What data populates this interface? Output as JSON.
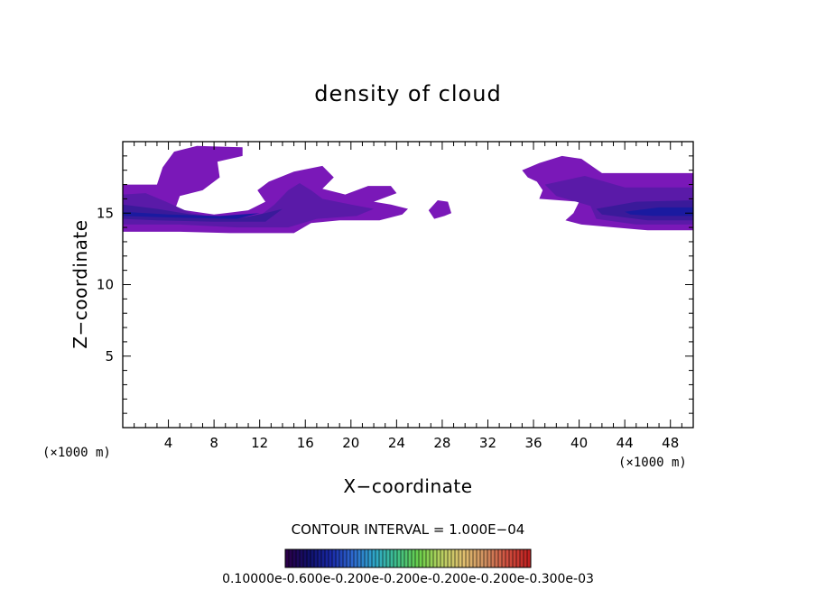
{
  "chart_data": {
    "type": "heatmap",
    "title": "density of cloud",
    "xlabel": "X−coordinate",
    "ylabel": "Z−coordinate",
    "x_unit": "(×1000 m)",
    "y_unit": "(×1000 m)",
    "xlim": [
      0,
      50
    ],
    "ylim": [
      0,
      20
    ],
    "x_ticks": [
      4,
      8,
      12,
      16,
      20,
      24,
      28,
      32,
      36,
      40,
      44,
      48
    ],
    "x_tick_labels": [
      "4",
      "8",
      "12",
      "16",
      "20",
      "24",
      "28",
      "32",
      "36",
      "40",
      "44",
      "48"
    ],
    "y_ticks": [
      5,
      10,
      15
    ],
    "y_tick_labels": [
      "5",
      "10",
      "15"
    ],
    "contour_interval_text": "CONTOUR INTERVAL = 1.000E−04",
    "colorbar_labels_text": "0.10000e-0.600e-0.200e-0.200e-0.200e-0.200e-0.300e-03",
    "colorbar_colors": [
      "#2a004a",
      "#10106a",
      "#1a2aa8",
      "#2e6ad0",
      "#2fa8c8",
      "#3fbf8a",
      "#6ad04a",
      "#b8d060",
      "#e0c070",
      "#d09060",
      "#d05040",
      "#c02020"
    ],
    "colors": {
      "cloud_outer": "#7a18b8",
      "cloud_mid": "#5a1aa8",
      "cloud_inner": "#3a1a9a",
      "cloud_core": "#1a1aa0"
    },
    "cloud_regions": [
      {
        "level": "outer",
        "poly": [
          [
            0,
            17.0
          ],
          [
            3.0,
            17.0
          ],
          [
            3.5,
            18.2
          ],
          [
            4.5,
            19.3
          ],
          [
            6.5,
            19.7
          ],
          [
            10.5,
            19.6
          ],
          [
            10.5,
            19.0
          ],
          [
            8.3,
            18.6
          ],
          [
            8.5,
            17.5
          ],
          [
            7.0,
            16.6
          ],
          [
            5.0,
            16.2
          ],
          [
            4.6,
            15.3
          ],
          [
            8.0,
            14.9
          ],
          [
            11.0,
            15.2
          ],
          [
            12.5,
            15.8
          ],
          [
            11.8,
            16.6
          ],
          [
            12.8,
            17.2
          ],
          [
            15.0,
            17.9
          ],
          [
            17.5,
            18.3
          ],
          [
            18.5,
            17.5
          ],
          [
            17.5,
            16.7
          ],
          [
            19.5,
            16.3
          ],
          [
            21.5,
            16.9
          ],
          [
            23.5,
            16.9
          ],
          [
            24.0,
            16.4
          ],
          [
            22.0,
            15.8
          ],
          [
            23.5,
            15.6
          ],
          [
            25.0,
            15.3
          ],
          [
            24.5,
            14.9
          ],
          [
            22.5,
            14.5
          ],
          [
            19.0,
            14.5
          ],
          [
            16.5,
            14.3
          ],
          [
            15.0,
            13.6
          ],
          [
            12.5,
            13.6
          ],
          [
            9.5,
            13.6
          ],
          [
            5.0,
            13.7
          ],
          [
            0,
            13.7
          ]
        ]
      },
      {
        "level": "outer",
        "poly": [
          [
            26.8,
            15.2
          ],
          [
            27.6,
            15.9
          ],
          [
            28.5,
            15.8
          ],
          [
            28.8,
            15.0
          ],
          [
            28.2,
            14.8
          ],
          [
            27.3,
            14.6
          ]
        ]
      },
      {
        "level": "outer",
        "poly": [
          [
            35.0,
            18.0
          ],
          [
            36.5,
            18.5
          ],
          [
            38.5,
            19.0
          ],
          [
            40.2,
            18.8
          ],
          [
            42.0,
            17.8
          ],
          [
            50,
            17.8
          ],
          [
            50,
            13.8
          ],
          [
            46.0,
            13.8
          ],
          [
            40.2,
            14.2
          ],
          [
            38.8,
            14.5
          ],
          [
            39.5,
            15.0
          ],
          [
            40.0,
            15.8
          ],
          [
            36.5,
            16.0
          ],
          [
            36.8,
            16.6
          ],
          [
            36.3,
            17.2
          ],
          [
            35.5,
            17.5
          ]
        ]
      },
      {
        "level": "mid",
        "poly": [
          [
            0,
            16.3
          ],
          [
            2.0,
            16.4
          ],
          [
            3.8,
            15.8
          ],
          [
            6.0,
            15.0
          ],
          [
            9.0,
            14.6
          ],
          [
            12.0,
            14.8
          ],
          [
            13.3,
            15.6
          ],
          [
            14.5,
            16.6
          ],
          [
            15.5,
            17.1
          ],
          [
            16.5,
            16.6
          ],
          [
            17.5,
            16.0
          ],
          [
            20.0,
            15.6
          ],
          [
            22.0,
            15.3
          ],
          [
            20.5,
            14.8
          ],
          [
            17.0,
            14.6
          ],
          [
            14.5,
            14.0
          ],
          [
            10.0,
            14.0
          ],
          [
            5.0,
            14.2
          ],
          [
            0,
            14.2
          ]
        ]
      },
      {
        "level": "mid",
        "poly": [
          [
            37.0,
            17.0
          ],
          [
            40.5,
            17.6
          ],
          [
            44.0,
            16.8
          ],
          [
            50,
            16.8
          ],
          [
            50,
            14.2
          ],
          [
            45.0,
            14.2
          ],
          [
            41.5,
            14.6
          ],
          [
            41.0,
            15.5
          ],
          [
            38.0,
            16.2
          ]
        ]
      },
      {
        "level": "inner",
        "poly": [
          [
            0,
            15.6
          ],
          [
            3.0,
            15.3
          ],
          [
            6.0,
            14.9
          ],
          [
            10.0,
            14.6
          ],
          [
            12.5,
            15.0
          ],
          [
            14.0,
            15.3
          ],
          [
            12.5,
            14.4
          ],
          [
            8.0,
            14.4
          ],
          [
            3.0,
            14.5
          ],
          [
            0,
            14.6
          ]
        ]
      },
      {
        "level": "inner",
        "poly": [
          [
            41.5,
            15.3
          ],
          [
            45.0,
            15.8
          ],
          [
            50,
            15.9
          ],
          [
            50,
            14.5
          ],
          [
            46.0,
            14.5
          ],
          [
            42.0,
            14.9
          ]
        ]
      },
      {
        "level": "core",
        "poly": [
          [
            0,
            15.1
          ],
          [
            4.0,
            14.9
          ],
          [
            8.5,
            14.8
          ],
          [
            12.0,
            15.0
          ],
          [
            10.0,
            14.6
          ],
          [
            4.0,
            14.7
          ],
          [
            0,
            14.8
          ]
        ]
      },
      {
        "level": "core",
        "poly": [
          [
            44.0,
            15.1
          ],
          [
            47.0,
            15.4
          ],
          [
            50,
            15.4
          ],
          [
            50,
            14.8
          ],
          [
            46.5,
            14.8
          ],
          [
            44.5,
            14.9
          ]
        ]
      }
    ]
  }
}
